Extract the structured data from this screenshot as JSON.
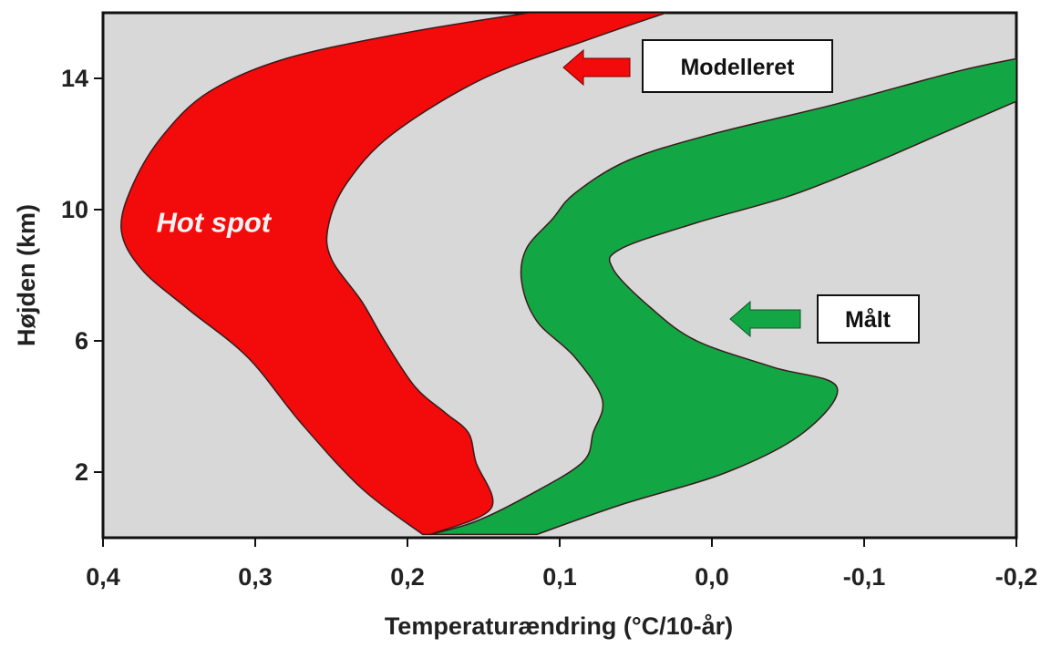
{
  "chart_data": {
    "type": "area",
    "title": "",
    "xlabel": "Temperaturændring (°C/10-år)",
    "ylabel": "Højden (km)",
    "xlim": [
      0.4,
      -0.2
    ],
    "ylim": [
      0,
      16
    ],
    "x_ticks": [
      "0,4",
      "0,3",
      "0,2",
      "0,1",
      "0,0",
      "-0,1",
      "-0,2"
    ],
    "x_tick_values": [
      0.4,
      0.3,
      0.2,
      0.1,
      0.0,
      -0.1,
      -0.2
    ],
    "y_ticks": [
      "2",
      "6",
      "10",
      "14"
    ],
    "y_tick_values": [
      2,
      6,
      10,
      14
    ],
    "grid": false,
    "background_color": "#d8d8d8",
    "series": [
      {
        "name": "Modelleret",
        "color": "#f30a0a",
        "left_edge": [
          {
            "x": 0.19,
            "y": 0.1
          },
          {
            "x": 0.23,
            "y": 1.5
          },
          {
            "x": 0.27,
            "y": 3.5
          },
          {
            "x": 0.305,
            "y": 5.5
          },
          {
            "x": 0.345,
            "y": 7.0
          },
          {
            "x": 0.375,
            "y": 8.2
          },
          {
            "x": 0.388,
            "y": 9.4
          },
          {
            "x": 0.38,
            "y": 10.8
          },
          {
            "x": 0.36,
            "y": 12.3
          },
          {
            "x": 0.33,
            "y": 13.6
          },
          {
            "x": 0.28,
            "y": 14.6
          },
          {
            "x": 0.2,
            "y": 15.4
          },
          {
            "x": 0.12,
            "y": 16.0
          }
        ],
        "right_edge": [
          {
            "x": 0.185,
            "y": 0.1
          },
          {
            "x": 0.145,
            "y": 0.9
          },
          {
            "x": 0.155,
            "y": 2.3
          },
          {
            "x": 0.16,
            "y": 3.2
          },
          {
            "x": 0.175,
            "y": 3.8
          },
          {
            "x": 0.195,
            "y": 4.6
          },
          {
            "x": 0.215,
            "y": 6.0
          },
          {
            "x": 0.23,
            "y": 7.2
          },
          {
            "x": 0.25,
            "y": 8.5
          },
          {
            "x": 0.252,
            "y": 9.5
          },
          {
            "x": 0.24,
            "y": 10.8
          },
          {
            "x": 0.21,
            "y": 12.3
          },
          {
            "x": 0.15,
            "y": 14.0
          },
          {
            "x": 0.08,
            "y": 15.2
          },
          {
            "x": 0.03,
            "y": 16.0
          }
        ]
      },
      {
        "name": "Målt",
        "color": "#12a645",
        "left_edge": [
          {
            "x": 0.185,
            "y": 0.1
          },
          {
            "x": 0.155,
            "y": 0.5
          },
          {
            "x": 0.12,
            "y": 1.3
          },
          {
            "x": 0.085,
            "y": 2.3
          },
          {
            "x": 0.078,
            "y": 3.2
          },
          {
            "x": 0.072,
            "y": 4.2
          },
          {
            "x": 0.09,
            "y": 5.5
          },
          {
            "x": 0.115,
            "y": 6.6
          },
          {
            "x": 0.125,
            "y": 7.8
          },
          {
            "x": 0.122,
            "y": 8.8
          },
          {
            "x": 0.105,
            "y": 9.7
          },
          {
            "x": 0.09,
            "y": 10.5
          },
          {
            "x": 0.055,
            "y": 11.5
          },
          {
            "x": 0.0,
            "y": 12.3
          },
          {
            "x": -0.08,
            "y": 13.2
          },
          {
            "x": -0.16,
            "y": 14.2
          },
          {
            "x": -0.2,
            "y": 14.6
          }
        ],
        "right_edge": [
          {
            "x": 0.115,
            "y": 0.1
          },
          {
            "x": 0.06,
            "y": 1.0
          },
          {
            "x": -0.01,
            "y": 2.0
          },
          {
            "x": -0.06,
            "y": 3.2
          },
          {
            "x": -0.082,
            "y": 4.6
          },
          {
            "x": -0.04,
            "y": 5.2
          },
          {
            "x": 0.01,
            "y": 6.0
          },
          {
            "x": 0.04,
            "y": 7.0
          },
          {
            "x": 0.065,
            "y": 8.2
          },
          {
            "x": 0.06,
            "y": 8.8
          },
          {
            "x": 0.01,
            "y": 9.6
          },
          {
            "x": -0.05,
            "y": 10.4
          },
          {
            "x": -0.1,
            "y": 11.3
          },
          {
            "x": -0.15,
            "y": 12.3
          },
          {
            "x": -0.2,
            "y": 13.3
          }
        ]
      }
    ],
    "annotations": [
      {
        "text": "Hot spot",
        "x": 0.365,
        "y": 9.6,
        "color": "#f2f2f2"
      }
    ],
    "legend": [
      {
        "label": "Modelleret",
        "arrow_color": "#f30a0a",
        "position": "top-right"
      },
      {
        "label": "Målt",
        "arrow_color": "#12a645",
        "position": "middle-right"
      }
    ]
  }
}
